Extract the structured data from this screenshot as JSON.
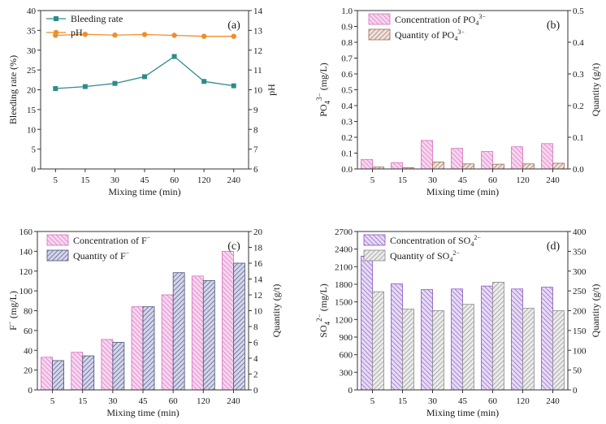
{
  "colors": {
    "teal": "#2e8b8b",
    "orange": "#ee8f2a",
    "pink": "#d86fc2",
    "pink_fill": "#f7d6ee",
    "brown": "#9e6a5a",
    "brown_fill": "#efe2dc",
    "navy": "#4c5178",
    "navy_fill": "#d3d5ea",
    "purple": "#8a56c4",
    "purple_fill": "#e6dbf5",
    "grey": "#8c8c8c",
    "grey_fill": "#ebebeb",
    "axis": "#333333"
  },
  "chart_data": [
    {
      "id": "a",
      "panel_label": "(a)",
      "type": "line",
      "categories": [
        "5",
        "15",
        "30",
        "45",
        "60",
        "120",
        "240"
      ],
      "xlabel": "Mixing time (min)",
      "ylabel_left": "Bleeding rate (%)",
      "ylabel_right": "pH",
      "ylim_left": [
        0,
        40
      ],
      "yticks_left": [
        "0",
        "5",
        "10",
        "15",
        "20",
        "25",
        "30",
        "35",
        "40"
      ],
      "ylim_right": [
        6,
        14
      ],
      "yticks_right": [
        "6",
        "7",
        "8",
        "9",
        "10",
        "11",
        "12",
        "13",
        "14"
      ],
      "series": [
        {
          "name": "Bleeding rate",
          "axis": "left",
          "color": "#2e8b8b",
          "marker": "square",
          "values": [
            20.3,
            20.8,
            21.6,
            23.3,
            28.4,
            22.1,
            21.0
          ]
        },
        {
          "name": "pH",
          "axis": "right",
          "color": "#ee8f2a",
          "marker": "circle",
          "values": [
            12.75,
            12.8,
            12.76,
            12.79,
            12.75,
            12.7,
            12.7
          ]
        }
      ]
    },
    {
      "id": "b",
      "panel_label": "(b)",
      "type": "bar",
      "categories": [
        "5",
        "15",
        "30",
        "45",
        "60",
        "120",
        "240"
      ],
      "xlabel": "Mixing time (min)",
      "ylabel_left_main": "PO",
      "ylabel_left_sub": "4",
      "ylabel_left_sup": "3−",
      "ylabel_left_tail": " (mg/L)",
      "ylabel_right": "Quantity (g/t)",
      "ylim_left": [
        0,
        1.0
      ],
      "yticks_left": [
        "0.0",
        "0.1",
        "0.2",
        "0.3",
        "0.4",
        "0.5",
        "0.6",
        "0.7",
        "0.8",
        "0.9",
        "1.0"
      ],
      "ylim_right": [
        0,
        0.5
      ],
      "yticks_right": [
        "0.0",
        "0.1",
        "0.2",
        "0.3",
        "0.4",
        "0.5"
      ],
      "series": [
        {
          "name": "Concentration of PO",
          "sub": "4",
          "sup": "3−",
          "axis": "left",
          "color": "#d86fc2",
          "fill": "#f7d6ee",
          "values": [
            0.06,
            0.04,
            0.18,
            0.13,
            0.11,
            0.14,
            0.16
          ]
        },
        {
          "name": "Quantity of PO",
          "sub": "4",
          "sup": "3−",
          "axis": "right",
          "color": "#9e6a5a",
          "fill": "#efe2dc",
          "values": [
            0.006,
            0.004,
            0.022,
            0.016,
            0.015,
            0.016,
            0.018
          ]
        }
      ]
    },
    {
      "id": "c",
      "panel_label": "(c)",
      "type": "bar",
      "categories": [
        "5",
        "15",
        "30",
        "45",
        "60",
        "120",
        "240"
      ],
      "xlabel": "Mixing time (min)",
      "ylabel_left_main": "F",
      "ylabel_left_sup": "−",
      "ylabel_left_tail": " (mg/L)",
      "ylabel_right": "Quantity (g/t)",
      "ylim_left": [
        0,
        160
      ],
      "yticks_left": [
        "0",
        "20",
        "40",
        "60",
        "80",
        "100",
        "120",
        "140",
        "160"
      ],
      "ylim_right": [
        0,
        20
      ],
      "yticks_right": [
        "0",
        "2",
        "4",
        "6",
        "8",
        "10",
        "12",
        "14",
        "16",
        "18",
        "20"
      ],
      "series": [
        {
          "name": "Concentration of F",
          "sup": "−",
          "axis": "left",
          "color": "#d86fc2",
          "fill": "#f7d6ee",
          "values": [
            33,
            38,
            51,
            84,
            96,
            115,
            140
          ]
        },
        {
          "name": "Quantity of F",
          "sup": "−",
          "axis": "right",
          "color": "#4c5178",
          "fill": "#d3d5ea",
          "values": [
            3.7,
            4.3,
            6.0,
            10.5,
            14.8,
            13.8,
            16.0
          ]
        }
      ]
    },
    {
      "id": "d",
      "panel_label": "(d)",
      "type": "bar",
      "categories": [
        "5",
        "15",
        "30",
        "45",
        "60",
        "120",
        "240"
      ],
      "xlabel": "Mixing time (min)",
      "ylabel_left_main": "SO",
      "ylabel_left_sub": "4",
      "ylabel_left_sup": "2−",
      "ylabel_left_tail": " (mg/L)",
      "ylabel_right": "Quantity (g/t)",
      "ylim_left": [
        0,
        2700
      ],
      "yticks_left": [
        "0",
        "300",
        "600",
        "900",
        "1200",
        "1500",
        "1800",
        "2100",
        "2400",
        "2700"
      ],
      "ylim_right": [
        0,
        400
      ],
      "yticks_right": [
        "0",
        "50",
        "100",
        "150",
        "200",
        "250",
        "300",
        "350",
        "400"
      ],
      "series": [
        {
          "name": "Concentration of SO",
          "sub": "4",
          "sup": "2−",
          "axis": "left",
          "color": "#8a56c4",
          "fill": "#e6dbf5",
          "values": [
            2280,
            1810,
            1710,
            1720,
            1770,
            1720,
            1750
          ]
        },
        {
          "name": "Quantity of SO",
          "sub": "4",
          "sup": "2−",
          "axis": "right",
          "color": "#8c8c8c",
          "fill": "#ebebeb",
          "values": [
            248,
            204,
            200,
            216,
            272,
            206,
            200
          ]
        }
      ]
    }
  ]
}
